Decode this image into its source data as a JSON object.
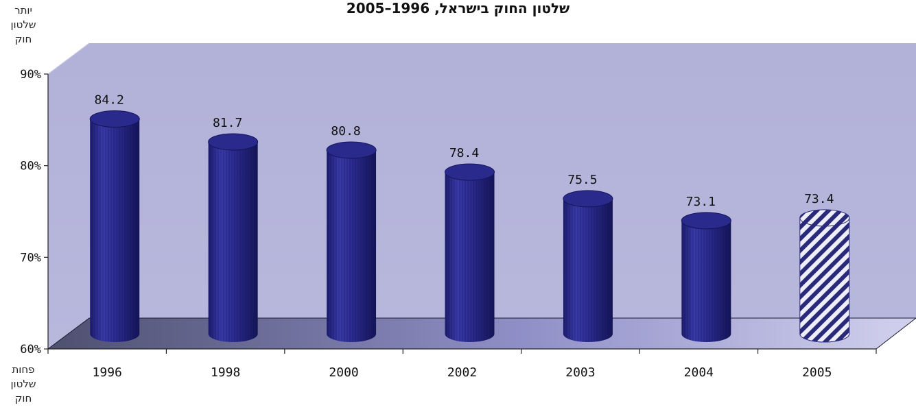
{
  "chart_data": {
    "type": "bar",
    "title": "שלטון החוק בישראל, 1996–2005",
    "categories": [
      "1996",
      "1998",
      "2000",
      "2002",
      "2003",
      "2004",
      "2005"
    ],
    "values": [
      84.2,
      81.7,
      80.8,
      78.4,
      75.5,
      73.1,
      73.4
    ],
    "value_labels": [
      "84.2",
      "81.7",
      "80.8",
      "78.4",
      "75.5",
      "73.1",
      "73.4"
    ],
    "hatched_categories": [
      "2005"
    ],
    "ylim": [
      60,
      90
    ],
    "yticks": [
      "60%",
      "70%",
      "80%",
      "90%"
    ],
    "ytick_values": [
      60,
      70,
      80,
      90
    ],
    "upper_label": [
      "יותר",
      "שלטון",
      "חוק"
    ],
    "lower_label": [
      "פחות",
      "שלטון",
      "חוק"
    ],
    "grid": false,
    "legend": "none"
  },
  "colors": {
    "bar_main": "#2a2a8c",
    "bar_dark": "#14145a",
    "bar_light": "#5555c8",
    "back_wall": "#b3b2d8",
    "floor_left": "#555878",
    "floor_right": "#c9c8ea",
    "hatch_stripe": "#2a2a7a"
  }
}
